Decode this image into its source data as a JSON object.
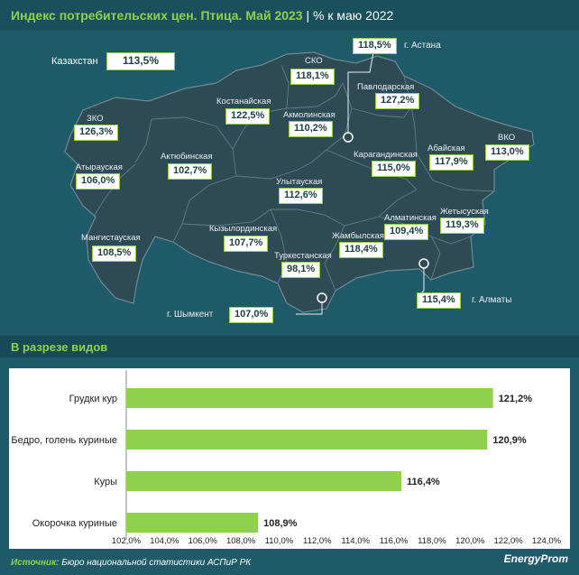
{
  "header": {
    "title": "Индекс потребительских цен. Птица. Май 2023",
    "subtitle": "% к маю 2022"
  },
  "map": {
    "country_label": "Казахстан",
    "country_value": "113,5%",
    "regions": [
      {
        "name": "СКО",
        "value": "118,1%"
      },
      {
        "name": "Павлодарская",
        "value": "127,2%"
      },
      {
        "name": "Костанайская",
        "value": "122,5%"
      },
      {
        "name": "Акмолинская",
        "value": "110,2%"
      },
      {
        "name": "ЗКО",
        "value": "126,3%"
      },
      {
        "name": "Атырауская",
        "value": "106,0%"
      },
      {
        "name": "Актюбинская",
        "value": "102,7%"
      },
      {
        "name": "Карагандинская",
        "value": "115,0%"
      },
      {
        "name": "Абайская",
        "value": "117,9%"
      },
      {
        "name": "ВКО",
        "value": "113,0%"
      },
      {
        "name": "Улытауская",
        "value": "112,6%"
      },
      {
        "name": "Мангистауская",
        "value": "108,5%"
      },
      {
        "name": "Кызылординская",
        "value": "107,7%"
      },
      {
        "name": "Жамбылская",
        "value": "118,4%"
      },
      {
        "name": "Алматинская",
        "value": "109,4%"
      },
      {
        "name": "Жетысуская",
        "value": "119,3%"
      },
      {
        "name": "Туркестанская",
        "value": "98,1%"
      }
    ],
    "cities": [
      {
        "name": "г. Астана",
        "value": "118,5%"
      },
      {
        "name": "г. Алматы",
        "value": "115,4%"
      },
      {
        "name": "г. Шымкент",
        "value": "107,0%"
      }
    ]
  },
  "section": {
    "title": "В разрезе видов"
  },
  "chart_data": {
    "type": "bar",
    "orientation": "horizontal",
    "categories": [
      "Грудки кур",
      "Бедро, голень куриные",
      "Куры",
      "Окорочка куриные"
    ],
    "values": [
      121.2,
      120.9,
      116.4,
      108.9
    ],
    "value_labels": [
      "121,2%",
      "120,9%",
      "116,4%",
      "108,9%"
    ],
    "xlim": [
      102,
      124
    ],
    "xticks": [
      102,
      104,
      106,
      108,
      110,
      112,
      114,
      116,
      118,
      120,
      122,
      124
    ],
    "xtick_labels": [
      "102,0%",
      "104,0%",
      "106,0%",
      "108,0%",
      "110,0%",
      "112,0%",
      "114,0%",
      "116,0%",
      "118,0%",
      "120,0%",
      "122,0%",
      "124,0%"
    ],
    "bar_color": "#8fd14f",
    "grid": false
  },
  "footer": {
    "source_label": "Источник:",
    "source_text": "Бюро национальной статистики АСПиР РК",
    "logo": "EnergyProm"
  },
  "colors": {
    "background": "#1f5a68",
    "accent": "#8fd14f",
    "map_fill": "#2e4a55",
    "map_border": "#5f7d86"
  }
}
